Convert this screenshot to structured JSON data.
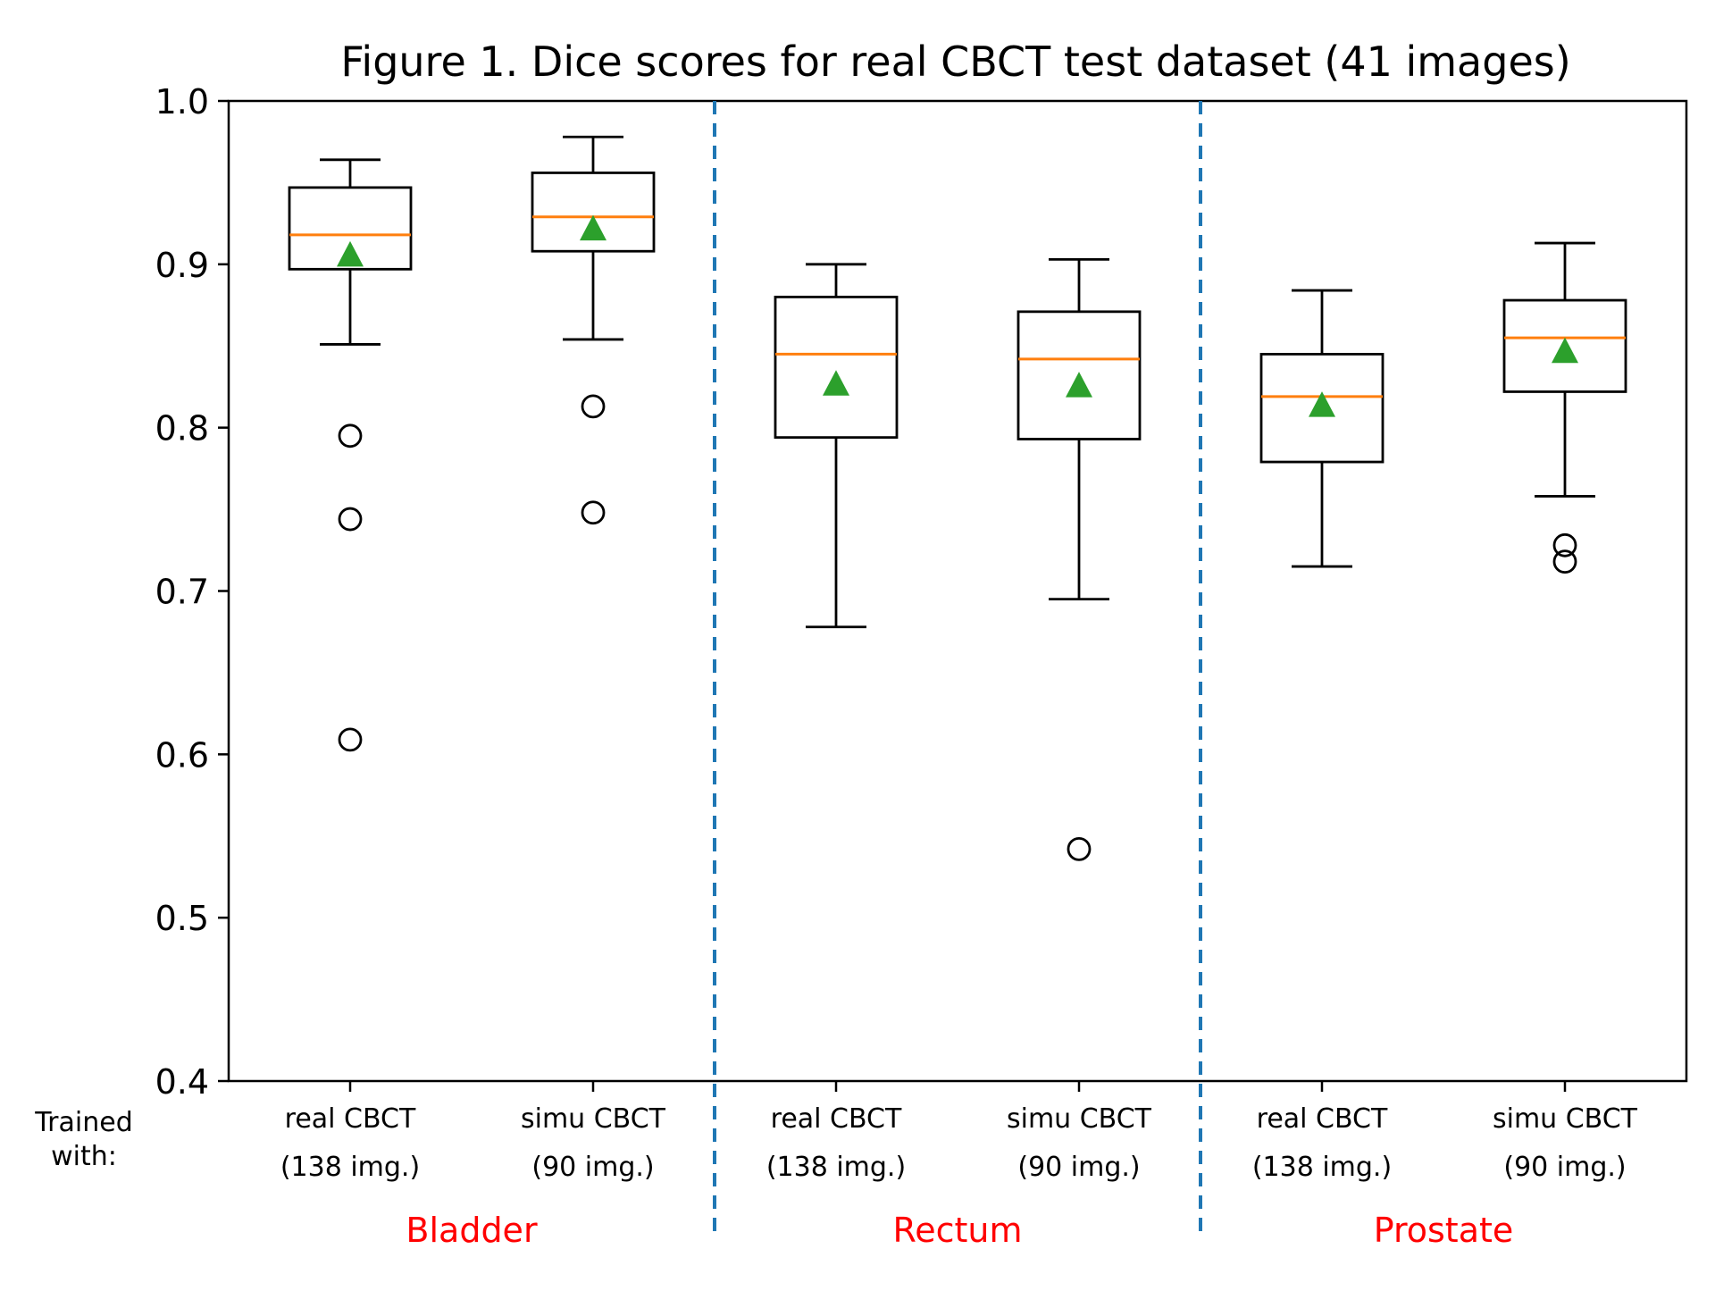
{
  "chart_data": {
    "type": "box",
    "title": "Figure 1. Dice scores for real CBCT test dataset (41 images)",
    "ylim": [
      0.4,
      1.0
    ],
    "yticks": [
      0.4,
      0.5,
      0.6,
      0.7,
      0.8,
      0.9,
      1.0
    ],
    "ytick_labels": [
      "0.4",
      "0.5",
      "0.6",
      "0.7",
      "0.8",
      "0.9",
      "1.0"
    ],
    "x_axis_side_label": [
      "Trained",
      "with:"
    ],
    "boxes": [
      {
        "label_line1": "real CBCT",
        "label_line2": "(138 img.)",
        "group": "Bladder",
        "whisker_low": 0.851,
        "q1": 0.897,
        "median": 0.918,
        "q3": 0.947,
        "whisker_high": 0.964,
        "mean": 0.906,
        "outliers": [
          0.795,
          0.744,
          0.609
        ]
      },
      {
        "label_line1": "simu CBCT",
        "label_line2": "(90 img.)",
        "group": "Bladder",
        "whisker_low": 0.854,
        "q1": 0.908,
        "median": 0.929,
        "q3": 0.956,
        "whisker_high": 0.978,
        "mean": 0.922,
        "outliers": [
          0.813,
          0.748
        ]
      },
      {
        "label_line1": "real CBCT",
        "label_line2": "(138 img.)",
        "group": "Rectum",
        "whisker_low": 0.678,
        "q1": 0.794,
        "median": 0.845,
        "q3": 0.88,
        "whisker_high": 0.9,
        "mean": 0.827,
        "outliers": []
      },
      {
        "label_line1": "simu CBCT",
        "label_line2": "(90 img.)",
        "group": "Rectum",
        "whisker_low": 0.695,
        "q1": 0.793,
        "median": 0.842,
        "q3": 0.871,
        "whisker_high": 0.903,
        "mean": 0.826,
        "outliers": [
          0.542
        ]
      },
      {
        "label_line1": "real CBCT",
        "label_line2": "(138 img.)",
        "group": "Prostate",
        "whisker_low": 0.715,
        "q1": 0.779,
        "median": 0.819,
        "q3": 0.845,
        "whisker_high": 0.884,
        "mean": 0.814,
        "outliers": []
      },
      {
        "label_line1": "simu CBCT",
        "label_line2": "(90 img.)",
        "group": "Prostate",
        "whisker_low": 0.758,
        "q1": 0.822,
        "median": 0.855,
        "q3": 0.878,
        "whisker_high": 0.913,
        "mean": 0.847,
        "outliers": [
          0.728,
          0.718
        ]
      }
    ],
    "groups": [
      "Bladder",
      "Rectum",
      "Prostate"
    ],
    "colors": {
      "box": "#000000",
      "median": "#ff7f0e",
      "mean_marker": "#2ca02c",
      "separator": "#1f77b4",
      "group_label": "#ff0000"
    }
  }
}
